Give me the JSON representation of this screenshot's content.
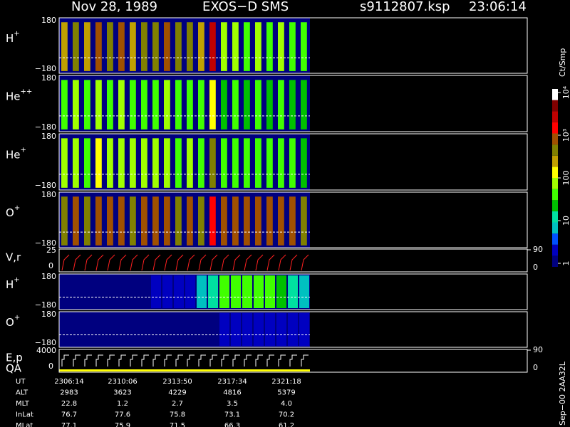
{
  "header": {
    "date": "Nov 28, 1989",
    "instrument": "EXOS−D SMS",
    "file": "s9112807.ksp",
    "time": "23:06:14"
  },
  "panels": [
    {
      "name": "H",
      "sup": "+",
      "top": "180",
      "bottom": "−180",
      "spectrum": [
        400,
        800,
        300,
        900,
        500,
        1000,
        400,
        800,
        600,
        900,
        500,
        700,
        300,
        3000,
        80,
        120,
        60,
        90,
        70,
        100,
        60,
        50
      ]
    },
    {
      "name": "He",
      "sup": "++",
      "top": "180",
      "bottom": "−180",
      "spectrum": [
        60,
        80,
        50,
        90,
        60,
        80,
        50,
        70,
        60,
        80,
        50,
        60,
        40,
        200,
        30,
        40,
        30,
        40,
        30,
        40,
        30,
        30
      ]
    },
    {
      "name": "He",
      "sup": "+",
      "top": "180",
      "bottom": "−180",
      "spectrum": [
        80,
        120,
        70,
        150,
        90,
        130,
        80,
        100,
        90,
        110,
        70,
        90,
        60,
        500,
        40,
        50,
        40,
        60,
        40,
        50,
        40,
        30
      ]
    },
    {
      "name": "O",
      "sup": "+",
      "top": "180",
      "bottom": "−180",
      "spectrum": [
        600,
        1200,
        800,
        1500,
        1000,
        1300,
        700,
        1100,
        900,
        1000,
        800,
        900,
        700,
        2000,
        1500,
        1200,
        1300,
        1100,
        1400,
        1000,
        1200,
        800
      ]
    },
    {
      "name": "H",
      "sup": "+",
      "top": "180",
      "bottom": "−180",
      "spectrum": [
        1,
        1,
        1,
        1,
        1,
        1,
        1,
        1,
        2,
        3,
        2,
        3,
        10,
        12,
        40,
        60,
        50,
        60,
        40,
        30,
        15,
        10
      ]
    },
    {
      "name": "O",
      "sup": "+",
      "top": "180",
      "bottom": "−180",
      "spectrum": [
        1,
        1,
        1,
        1,
        1,
        1,
        1,
        1,
        1,
        1,
        1,
        1,
        1,
        1,
        2,
        2,
        3,
        3,
        2,
        3,
        3,
        2
      ]
    }
  ],
  "vr": {
    "name": "V,r",
    "top": "25",
    "bottom": "0",
    "right_top": "90",
    "right_bottom": "0"
  },
  "ep": {
    "name": "E,p",
    "name2": "QA",
    "top": "4000",
    "bottom": "0",
    "right_top": "90",
    "right_bottom": "0"
  },
  "colorbar": {
    "unit": "Ct/Smp",
    "ticks": [
      {
        "value": 1,
        "label": "1"
      },
      {
        "value": 10,
        "label": "10"
      },
      {
        "value": 100,
        "label": "100"
      },
      {
        "value": 1000,
        "label": "10³"
      },
      {
        "value": 10000,
        "label": "10⁴"
      }
    ],
    "colors": [
      "#00007f",
      "#0000c0",
      "#0050ff",
      "#00c0c0",
      "#00e0a0",
      "#00c000",
      "#40ff00",
      "#a0ff00",
      "#ffff00",
      "#c0a000",
      "#808000",
      "#a05000",
      "#ff0000",
      "#c00000",
      "#800000",
      "#ffffff"
    ]
  },
  "ephemeris": {
    "rows": [
      [
        "UT",
        "2306:14",
        "2310:06",
        "2313:50",
        "2317:34",
        "2321:18"
      ],
      [
        "ALT",
        "2983",
        "3623",
        "4229",
        "4816",
        "5379"
      ],
      [
        "MLT",
        "22.8",
        "1.2",
        "2.7",
        "3.5",
        "4.0"
      ],
      [
        "InLat",
        "76.7",
        "77.6",
        "75.8",
        "73.1",
        "70.2"
      ],
      [
        "MLat",
        "77.1",
        "75.9",
        "71.5",
        "66.3",
        "61.2"
      ]
    ]
  },
  "footer": "Sep−00 2AA32L"
}
